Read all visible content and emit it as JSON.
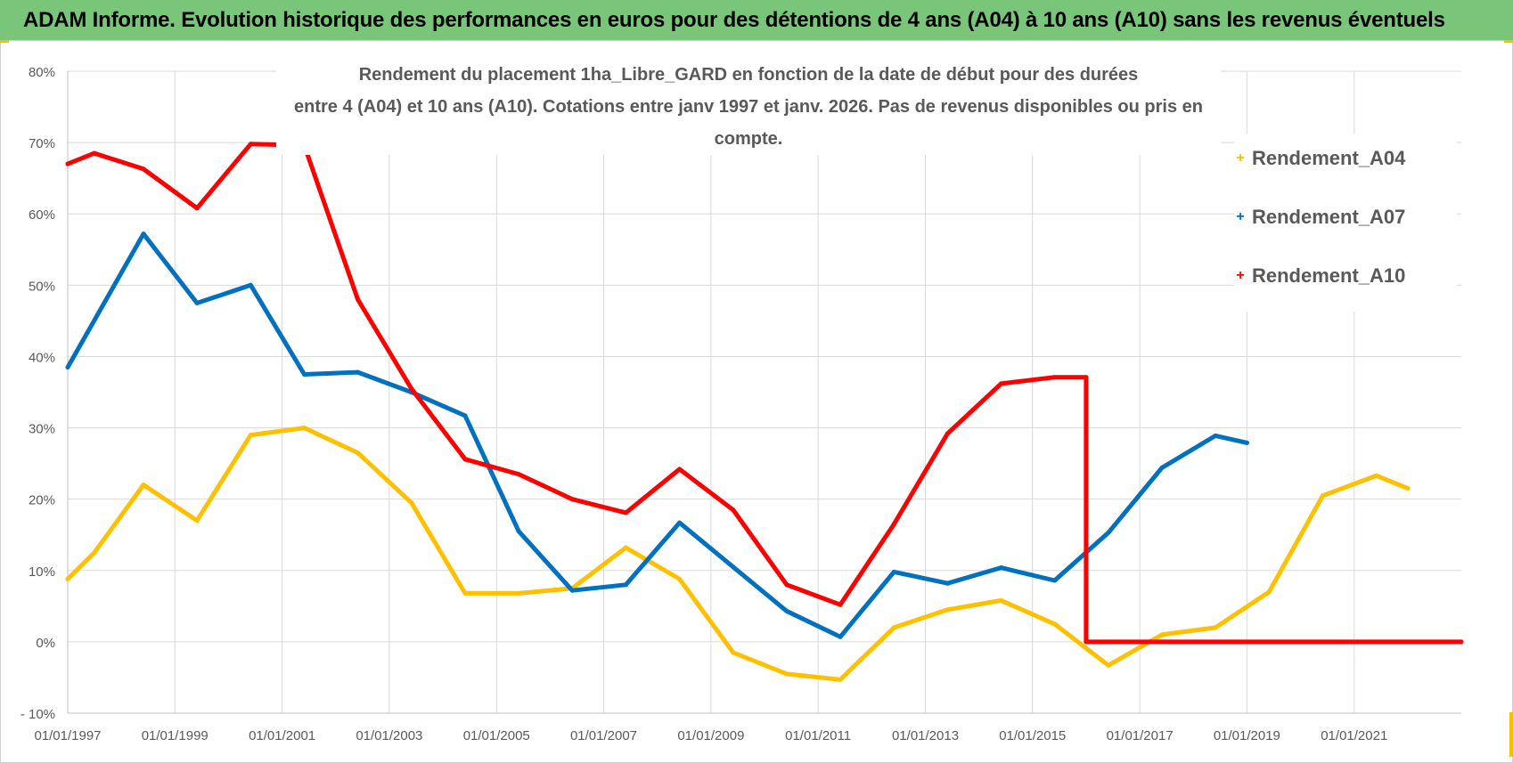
{
  "header": {
    "title": "ADAM Informe. Evolution historique des performances en euros pour des détentions de 4 ans (A04) à 10 ans (A10) sans les revenus éventuels"
  },
  "colors": {
    "header_bg": "#79c57a",
    "series_a04": "#ffc000",
    "series_a07": "#0070c0",
    "series_a10": "#ff0000",
    "grid": "#d9d9d9",
    "axis_text": "#595959"
  },
  "chart_data": {
    "type": "line",
    "title_line1": "Rendement du placement 1ha_Libre_GARD en fonction de la date de début pour des durées",
    "title_line2": "entre 4 (A04) et 10 ans (A10).  Cotations entre janv 1997 et janv. 2026. Pas de revenus disponibles ou pris en compte.",
    "xlabel": "",
    "ylabel": "",
    "x_range": [
      "1997-01-01",
      "2023-01-01"
    ],
    "x_tick_labels": [
      "01/01/1997",
      "01/01/1999",
      "01/01/2001",
      "01/01/2003",
      "01/01/2005",
      "01/01/2007",
      "01/01/2009",
      "01/01/2011",
      "01/01/2013",
      "01/01/2015",
      "01/01/2017",
      "01/01/2019",
      "01/01/2021"
    ],
    "x_tick_dates": [
      "1997-01-01",
      "1999-01-01",
      "2001-01-01",
      "2003-01-01",
      "2005-01-01",
      "2007-01-01",
      "2009-01-01",
      "2011-01-01",
      "2013-01-01",
      "2015-01-01",
      "2017-01-01",
      "2019-01-01",
      "2021-01-01"
    ],
    "ylim": [
      -10,
      80
    ],
    "y_ticks": [
      -10,
      0,
      10,
      20,
      30,
      40,
      50,
      60,
      70,
      80
    ],
    "y_tick_labels": [
      "- 10%",
      "0%",
      "10%",
      "20%",
      "30%",
      "40%",
      "50%",
      "60%",
      "70%",
      "80%"
    ],
    "grid": true,
    "legend_position": "top-right",
    "series": [
      {
        "name": "Rendement_A04",
        "color": "#ffc000",
        "x": [
          "1997-01-01",
          "1997-07-01",
          "1998-06-01",
          "1999-06-01",
          "2000-06-01",
          "2001-06-01",
          "2002-06-01",
          "2003-06-01",
          "2004-06-01",
          "2005-06-01",
          "2006-06-01",
          "2007-06-01",
          "2008-06-01",
          "2009-06-01",
          "2010-06-01",
          "2011-06-01",
          "2012-06-01",
          "2013-06-01",
          "2014-06-01",
          "2015-06-01",
          "2016-06-01",
          "2017-06-01",
          "2018-06-01",
          "2019-06-01",
          "2020-06-01",
          "2021-06-01",
          "2022-01-01"
        ],
        "values": [
          8.8,
          12.5,
          22,
          17,
          29,
          30,
          26.5,
          19.5,
          6.8,
          6.8,
          7.5,
          13.2,
          8.8,
          -1.5,
          -4.5,
          -5.3,
          2,
          4.5,
          5.8,
          2.5,
          -3.3,
          1,
          2,
          7,
          20.5,
          23.3,
          21.5
        ]
      },
      {
        "name": "Rendement_A07",
        "color": "#0070c0",
        "x": [
          "1997-01-01",
          "1998-06-01",
          "1999-06-01",
          "2000-06-01",
          "2001-06-01",
          "2002-06-01",
          "2003-06-01",
          "2004-06-01",
          "2005-06-01",
          "2006-06-01",
          "2007-06-01",
          "2008-06-01",
          "2009-06-01",
          "2010-06-01",
          "2011-06-01",
          "2012-06-01",
          "2013-06-01",
          "2014-06-01",
          "2015-06-01",
          "2016-06-01",
          "2017-06-01",
          "2018-06-01",
          "2019-01-01"
        ],
        "values": [
          38.5,
          57.2,
          47.5,
          50,
          37.5,
          37.8,
          35,
          31.7,
          15.5,
          7.2,
          8,
          16.7,
          10.5,
          4.3,
          0.7,
          9.8,
          8.2,
          10.4,
          8.6,
          15.3,
          24.4,
          28.9,
          27.9
        ]
      },
      {
        "name": "Rendement_A10",
        "color": "#ff0000",
        "x": [
          "1997-01-01",
          "1997-07-01",
          "1998-06-01",
          "1999-06-01",
          "2000-06-01",
          "2001-06-01",
          "2002-06-01",
          "2003-06-01",
          "2004-06-01",
          "2005-06-01",
          "2006-06-01",
          "2007-06-01",
          "2008-06-01",
          "2009-06-01",
          "2010-06-01",
          "2011-06-01",
          "2012-06-01",
          "2013-06-01",
          "2014-06-01",
          "2015-06-01",
          "2016-01-01",
          "2016-01-01",
          "2023-01-01"
        ],
        "values": [
          67,
          68.5,
          66.3,
          60.8,
          69.8,
          69.6,
          48,
          35.5,
          25.6,
          23.5,
          20,
          18.1,
          24.2,
          18.5,
          8,
          5.2,
          16.5,
          29.2,
          36.2,
          37.1,
          37.1,
          0,
          0
        ]
      }
    ]
  }
}
